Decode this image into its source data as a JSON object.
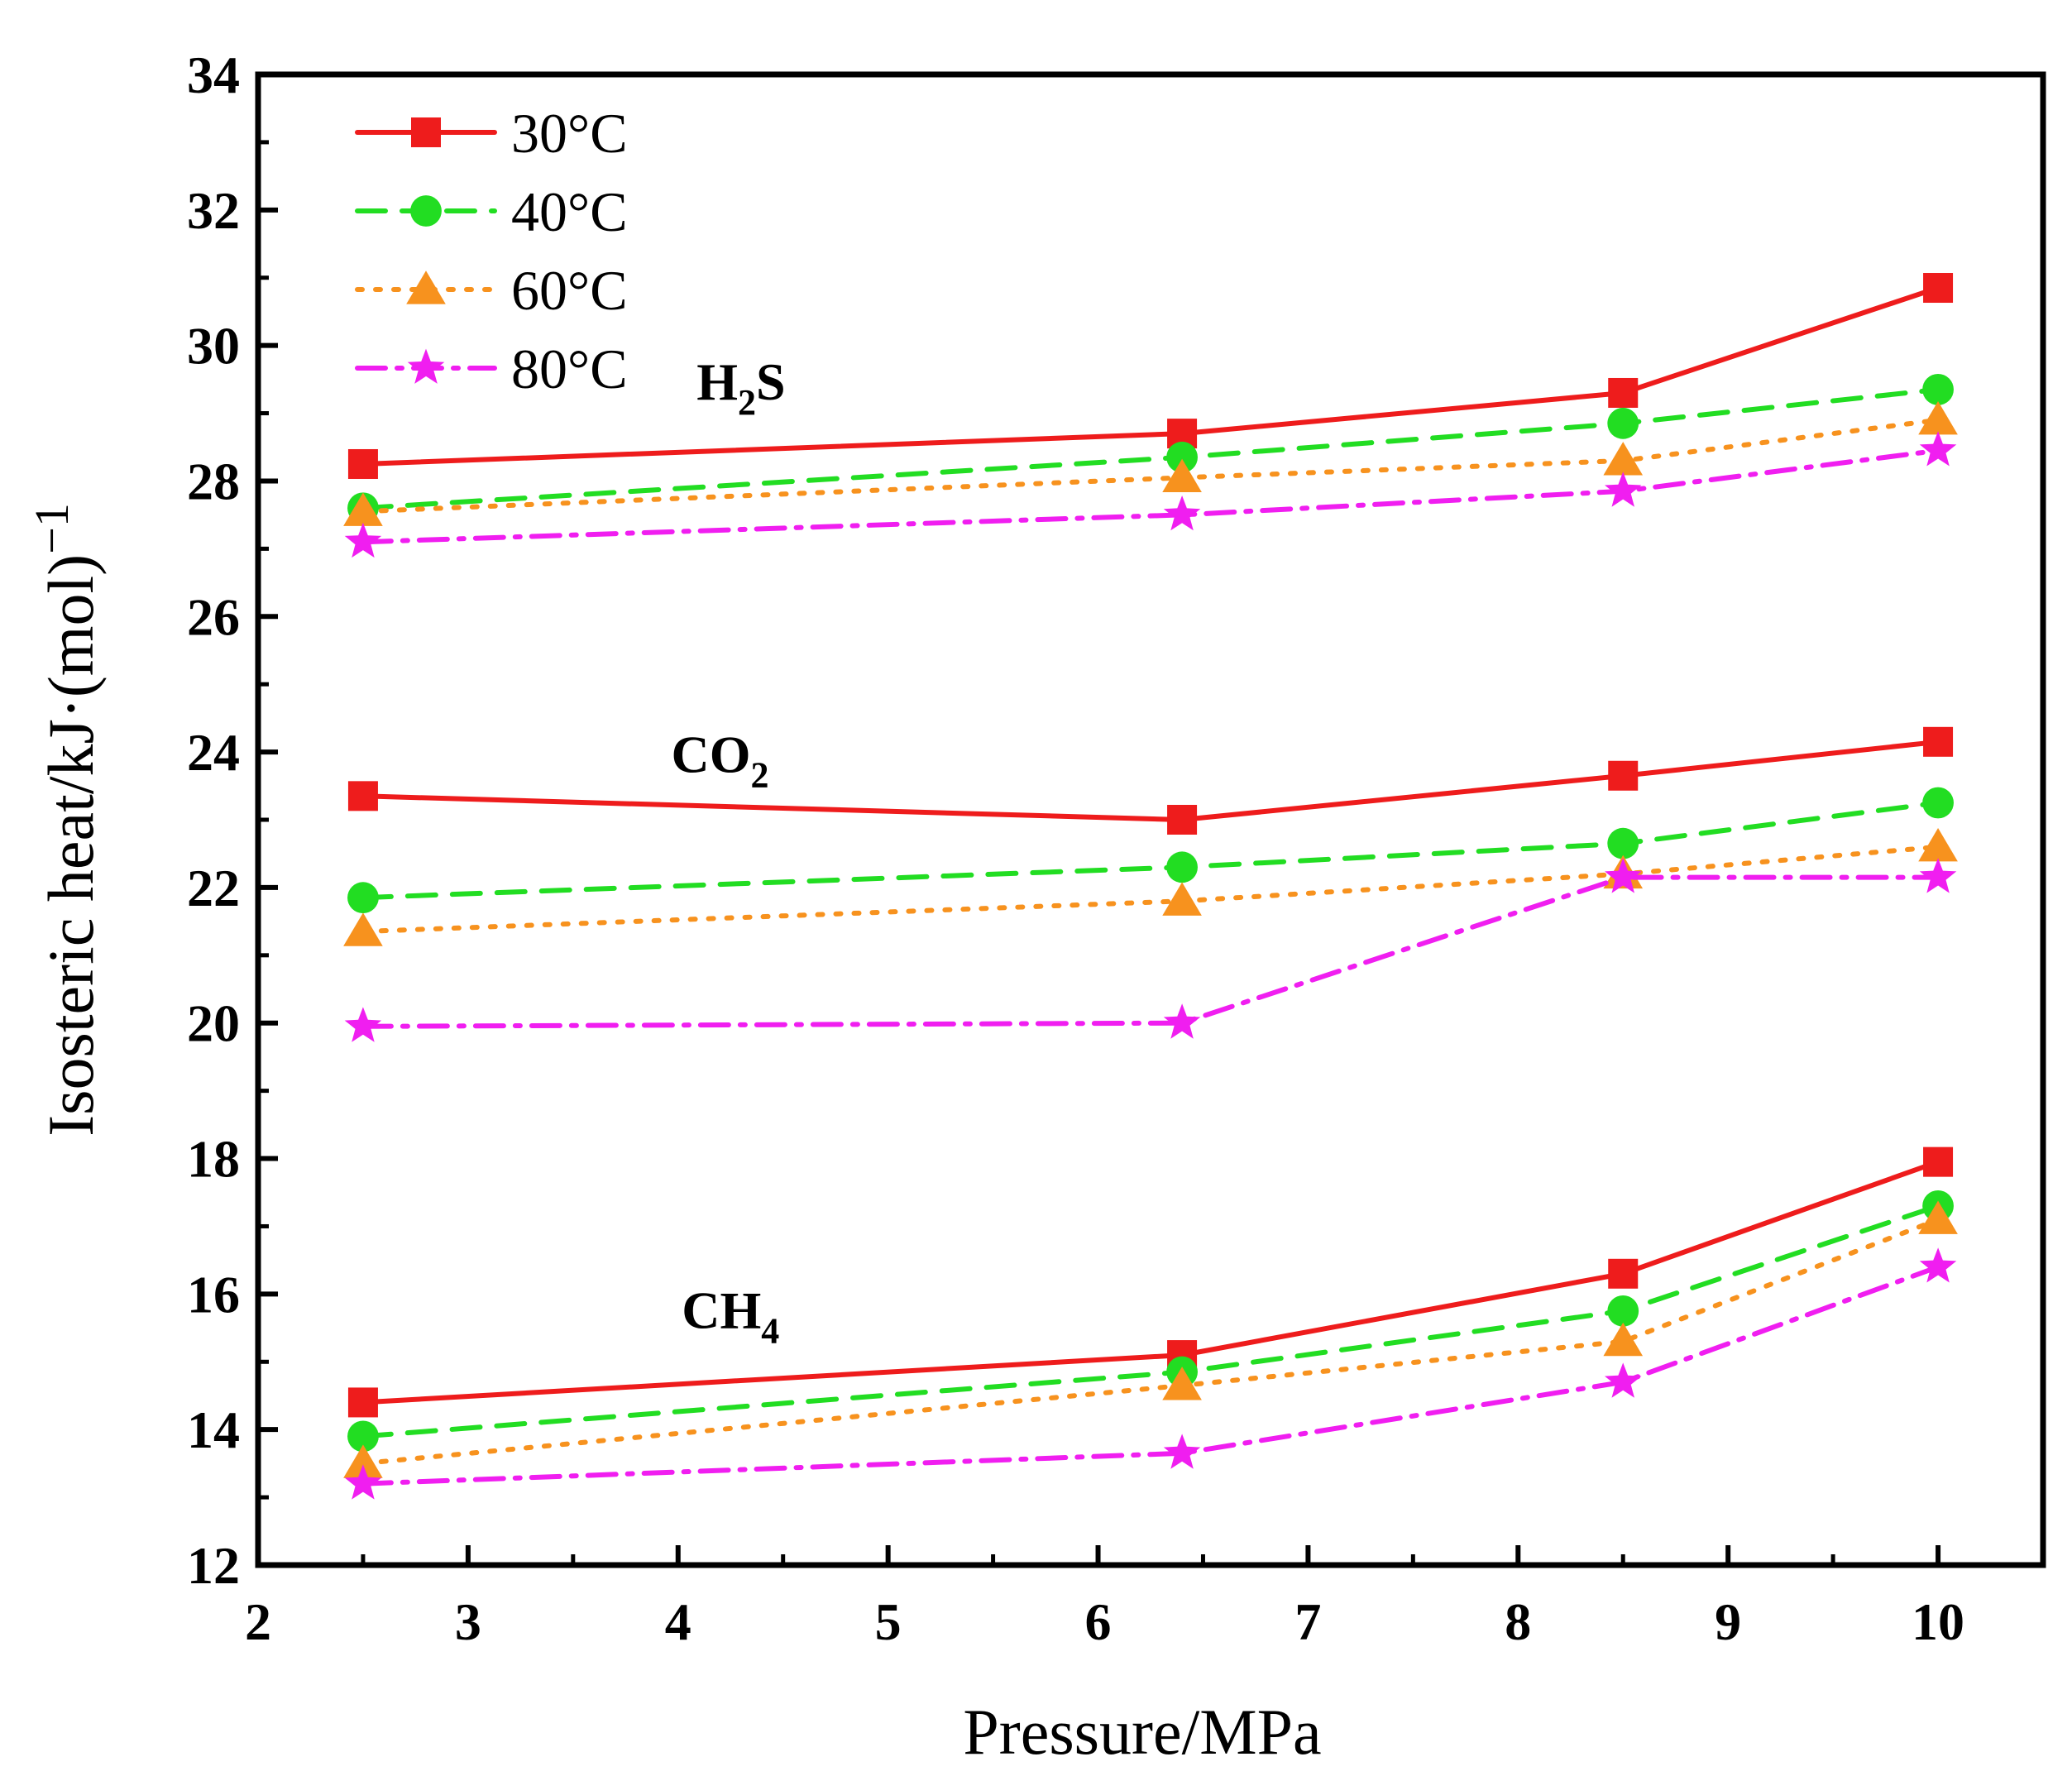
{
  "chart_data": {
    "type": "line",
    "title": "",
    "xlabel": "Pressure/MPa",
    "ylabel": "Isosteric heat/kJ·(mol)",
    "ylabel_superscript": "−1",
    "xlim": [
      2,
      10.5
    ],
    "ylim": [
      12,
      34
    ],
    "xticks": [
      2,
      3,
      4,
      5,
      6,
      7,
      8,
      9,
      10
    ],
    "yticks": [
      12,
      14,
      16,
      18,
      20,
      22,
      24,
      26,
      28,
      30,
      32,
      34
    ],
    "x": [
      2.5,
      6.4,
      8.5,
      10
    ],
    "legend_position": "top-left",
    "legend": [
      {
        "label": "30°C",
        "color": "#ee1c1c",
        "marker": "square",
        "dash": "solid"
      },
      {
        "label": "40°C",
        "color": "#22dd22",
        "marker": "circle",
        "dash": "dashed"
      },
      {
        "label": "60°C",
        "color": "#f7921e",
        "marker": "triangle",
        "dash": "dotted"
      },
      {
        "label": "80°C",
        "color": "#f01ef0",
        "marker": "star",
        "dash": "dashdot"
      }
    ],
    "groups": [
      {
        "name": "H2S",
        "label_main": "H",
        "label_sub": "2",
        "label_tail": "S",
        "label_at": [
          4.3,
          29.2
        ],
        "series": [
          {
            "name": "30°C",
            "values": [
              28.25,
              28.7,
              29.3,
              30.85
            ]
          },
          {
            "name": "40°C",
            "values": [
              27.6,
              28.35,
              28.85,
              29.35
            ]
          },
          {
            "name": "60°C",
            "values": [
              27.55,
              28.05,
              28.3,
              28.9
            ]
          },
          {
            "name": "80°C",
            "values": [
              27.1,
              27.5,
              27.85,
              28.45
            ]
          }
        ]
      },
      {
        "name": "CO2",
        "label_main": "CO",
        "label_sub": "2",
        "label_tail": "",
        "label_at": [
          4.2,
          23.7
        ],
        "series": [
          {
            "name": "30°C",
            "values": [
              23.35,
              23.0,
              23.65,
              24.15
            ]
          },
          {
            "name": "40°C",
            "values": [
              21.85,
              22.3,
              22.65,
              23.25
            ]
          },
          {
            "name": "60°C",
            "values": [
              21.35,
              21.8,
              22.2,
              22.6
            ]
          },
          {
            "name": "80°C",
            "values": [
              19.95,
              20.0,
              22.15,
              22.15
            ]
          }
        ]
      },
      {
        "name": "CH4",
        "label_main": "CH",
        "label_sub": "4",
        "label_tail": "",
        "label_at": [
          4.25,
          15.5
        ],
        "series": [
          {
            "name": "30°C",
            "values": [
              14.4,
              15.1,
              16.3,
              17.95
            ]
          },
          {
            "name": "40°C",
            "values": [
              13.9,
              14.85,
              15.75,
              17.3
            ]
          },
          {
            "name": "60°C",
            "values": [
              13.5,
              14.65,
              15.3,
              17.1
            ]
          },
          {
            "name": "80°C",
            "values": [
              13.2,
              13.65,
              14.7,
              16.4
            ]
          }
        ]
      }
    ]
  }
}
